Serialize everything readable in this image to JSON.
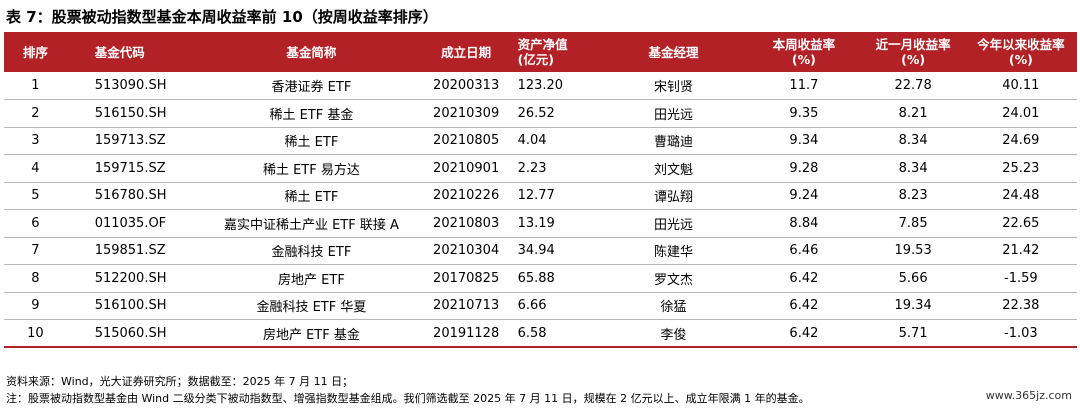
{
  "title": "表 7：股票被动指数型基金本周收益率前 10（按周收益率排序）",
  "headers": {
    "idx": "排序",
    "code": "基金代码",
    "name": "基金简称",
    "date": "成立日期",
    "aum_line1": "资产净值",
    "aum_line2": "(亿元)",
    "manager": "基金经理",
    "week_line1": "本周收益率",
    "week_line2": "(%)",
    "month_line1": "近一月收益率",
    "month_line2": "(%)",
    "ytd_line1": "今年以来收益率",
    "ytd_line2": "(%)"
  },
  "rows": [
    {
      "idx": "1",
      "code": "513090.SH",
      "name": "香港证券 ETF",
      "date": "20200313",
      "aum": "123.20",
      "manager": "宋钊贤",
      "week": "11.7",
      "month": "22.78",
      "ytd": "40.11"
    },
    {
      "idx": "2",
      "code": "516150.SH",
      "name": "稀土 ETF 基金",
      "date": "20210309",
      "aum": "26.52",
      "manager": "田光远",
      "week": "9.35",
      "month": "8.21",
      "ytd": "24.01"
    },
    {
      "idx": "3",
      "code": "159713.SZ",
      "name": "稀土 ETF",
      "date": "20210805",
      "aum": "4.04",
      "manager": "曹璐迪",
      "week": "9.34",
      "month": "8.34",
      "ytd": "24.69"
    },
    {
      "idx": "4",
      "code": "159715.SZ",
      "name": "稀土 ETF 易方达",
      "date": "20210901",
      "aum": "2.23",
      "manager": "刘文魁",
      "week": "9.28",
      "month": "8.34",
      "ytd": "25.23"
    },
    {
      "idx": "5",
      "code": "516780.SH",
      "name": "稀土 ETF",
      "date": "20210226",
      "aum": "12.77",
      "manager": "谭弘翔",
      "week": "9.24",
      "month": "8.23",
      "ytd": "24.48"
    },
    {
      "idx": "6",
      "code": "011035.OF",
      "name": "嘉实中证稀土产业 ETF 联接 A",
      "date": "20210803",
      "aum": "13.19",
      "manager": "田光远",
      "week": "8.84",
      "month": "7.85",
      "ytd": "22.65"
    },
    {
      "idx": "7",
      "code": "159851.SZ",
      "name": "金融科技 ETF",
      "date": "20210304",
      "aum": "34.94",
      "manager": "陈建华",
      "week": "6.46",
      "month": "19.53",
      "ytd": "21.42"
    },
    {
      "idx": "8",
      "code": "512200.SH",
      "name": "房地产 ETF",
      "date": "20170825",
      "aum": "65.88",
      "manager": "罗文杰",
      "week": "6.42",
      "month": "5.66",
      "ytd": "-1.59"
    },
    {
      "idx": "9",
      "code": "516100.SH",
      "name": "金融科技 ETF 华夏",
      "date": "20210713",
      "aum": "6.66",
      "manager": "徐猛",
      "week": "6.42",
      "month": "19.34",
      "ytd": "22.38"
    },
    {
      "idx": "10",
      "code": "515060.SH",
      "name": "房地产 ETF 基金",
      "date": "20191128",
      "aum": "6.58",
      "manager": "李俊",
      "week": "6.42",
      "month": "5.71",
      "ytd": "-1.03"
    }
  ],
  "source": "资料来源：Wind，光大证券研究所；数据截至：2025 年 7 月 11 日；",
  "note": "注：股票被动指数型基金由 Wind 二级分类下被动指数型、增强指数型基金组成。我们筛选截至 2025 年 7 月 11 日，规模在 2 亿元以上、成立年限满 1 年的基金。",
  "watermark": "www.365jz.com",
  "colors": {
    "header_bg": "#b12126",
    "header_text": "#ffffff",
    "row_divider": "#b8b8b8"
  }
}
